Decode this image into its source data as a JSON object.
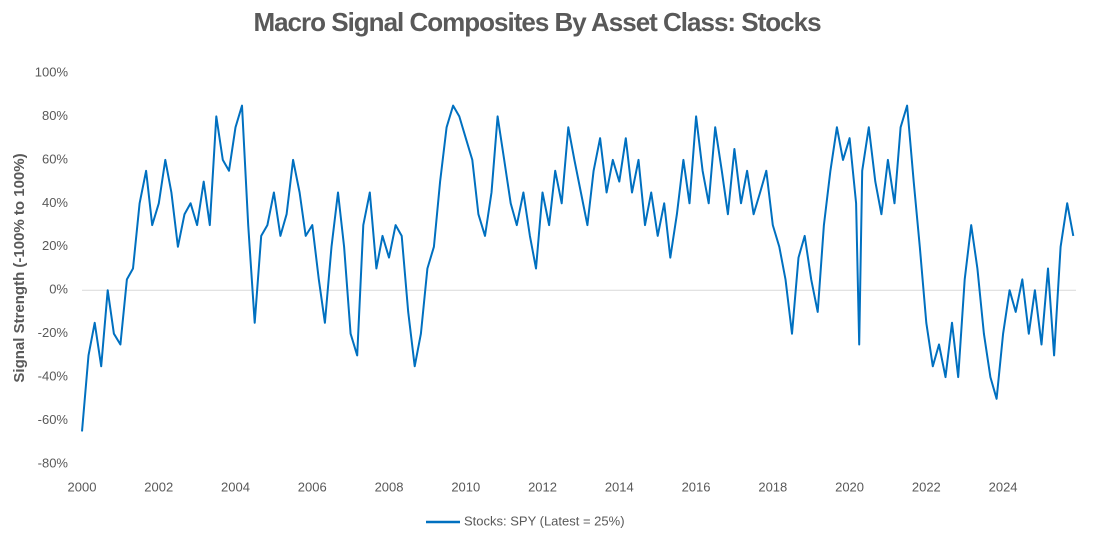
{
  "chart_data": {
    "type": "line",
    "title": "Macro Signal Composites By Asset Class: Stocks",
    "y_label": "Signal Strength (-100% to 100%)",
    "x": [
      2000.0,
      2000.17,
      2000.33,
      2000.5,
      2000.67,
      2000.83,
      2001.0,
      2001.17,
      2001.33,
      2001.5,
      2001.67,
      2001.83,
      2002.0,
      2002.17,
      2002.33,
      2002.5,
      2002.67,
      2002.83,
      2003.0,
      2003.17,
      2003.33,
      2003.5,
      2003.67,
      2003.83,
      2004.0,
      2004.17,
      2004.33,
      2004.5,
      2004.67,
      2004.83,
      2005.0,
      2005.17,
      2005.33,
      2005.5,
      2005.67,
      2005.83,
      2006.0,
      2006.17,
      2006.33,
      2006.5,
      2006.67,
      2006.83,
      2007.0,
      2007.17,
      2007.33,
      2007.5,
      2007.67,
      2007.83,
      2008.0,
      2008.17,
      2008.33,
      2008.5,
      2008.67,
      2008.83,
      2009.0,
      2009.17,
      2009.33,
      2009.5,
      2009.67,
      2009.83,
      2010.0,
      2010.17,
      2010.33,
      2010.5,
      2010.67,
      2010.83,
      2011.0,
      2011.17,
      2011.33,
      2011.5,
      2011.67,
      2011.83,
      2012.0,
      2012.17,
      2012.33,
      2012.5,
      2012.67,
      2012.83,
      2013.0,
      2013.17,
      2013.33,
      2013.5,
      2013.67,
      2013.83,
      2014.0,
      2014.17,
      2014.33,
      2014.5,
      2014.67,
      2014.83,
      2015.0,
      2015.17,
      2015.33,
      2015.5,
      2015.67,
      2015.83,
      2016.0,
      2016.17,
      2016.33,
      2016.5,
      2016.67,
      2016.83,
      2017.0,
      2017.17,
      2017.33,
      2017.5,
      2017.67,
      2017.83,
      2018.0,
      2018.17,
      2018.33,
      2018.5,
      2018.67,
      2018.83,
      2019.0,
      2019.17,
      2019.33,
      2019.5,
      2019.67,
      2019.83,
      2020.0,
      2020.17,
      2020.25,
      2020.33,
      2020.5,
      2020.67,
      2020.83,
      2021.0,
      2021.17,
      2021.33,
      2021.5,
      2021.67,
      2021.83,
      2022.0,
      2022.17,
      2022.33,
      2022.5,
      2022.67,
      2022.83,
      2023.0,
      2023.17,
      2023.33,
      2023.5,
      2023.67,
      2023.83,
      2024.0,
      2024.17,
      2024.33,
      2024.5,
      2024.67,
      2024.83,
      2025.0,
      2025.17,
      2025.33,
      2025.5,
      2025.67,
      2025.83
    ],
    "series": [
      {
        "name": "Stocks: SPY (Latest = 25%)",
        "color": "#0070c0",
        "values": [
          -65,
          -30,
          -15,
          -35,
          0,
          -20,
          -25,
          5,
          10,
          40,
          55,
          30,
          40,
          60,
          45,
          20,
          35,
          40,
          30,
          50,
          30,
          80,
          60,
          55,
          75,
          85,
          30,
          -15,
          25,
          30,
          45,
          25,
          35,
          60,
          45,
          25,
          30,
          5,
          -15,
          20,
          45,
          20,
          -20,
          -30,
          30,
          45,
          10,
          25,
          15,
          30,
          25,
          -10,
          -35,
          -20,
          10,
          20,
          50,
          75,
          85,
          80,
          70,
          60,
          35,
          25,
          45,
          80,
          60,
          40,
          30,
          45,
          25,
          10,
          45,
          30,
          55,
          40,
          75,
          60,
          45,
          30,
          55,
          70,
          45,
          60,
          50,
          70,
          45,
          60,
          30,
          45,
          25,
          40,
          15,
          35,
          60,
          40,
          80,
          55,
          40,
          75,
          55,
          35,
          65,
          40,
          55,
          35,
          45,
          55,
          30,
          20,
          5,
          -20,
          15,
          25,
          5,
          -10,
          30,
          55,
          75,
          60,
          70,
          40,
          -25,
          55,
          75,
          50,
          35,
          60,
          40,
          75,
          85,
          50,
          20,
          -15,
          -35,
          -25,
          -40,
          -15,
          -40,
          5,
          30,
          10,
          -20,
          -40,
          -50,
          -20,
          0,
          -10,
          5,
          -20,
          0,
          -25,
          10,
          -30,
          20,
          40,
          25
        ]
      }
    ],
    "xlim": [
      2000,
      2025.9
    ],
    "xticks": [
      2000,
      2002,
      2004,
      2006,
      2008,
      2010,
      2012,
      2014,
      2016,
      2018,
      2020,
      2022,
      2024
    ],
    "ylim": [
      -80,
      100
    ],
    "yticks": [
      {
        "value": -80,
        "label": "-80%"
      },
      {
        "value": -60,
        "label": "-60%"
      },
      {
        "value": -40,
        "label": "-40%"
      },
      {
        "value": -20,
        "label": "-20%"
      },
      {
        "value": 0,
        "label": "0%"
      },
      {
        "value": 20,
        "label": "20%"
      },
      {
        "value": 40,
        "label": "40%"
      },
      {
        "value": 60,
        "label": "60%"
      },
      {
        "value": 80,
        "label": "80%"
      },
      {
        "value": 100,
        "label": "100%"
      }
    ],
    "grid": false,
    "legend": "bottom"
  }
}
